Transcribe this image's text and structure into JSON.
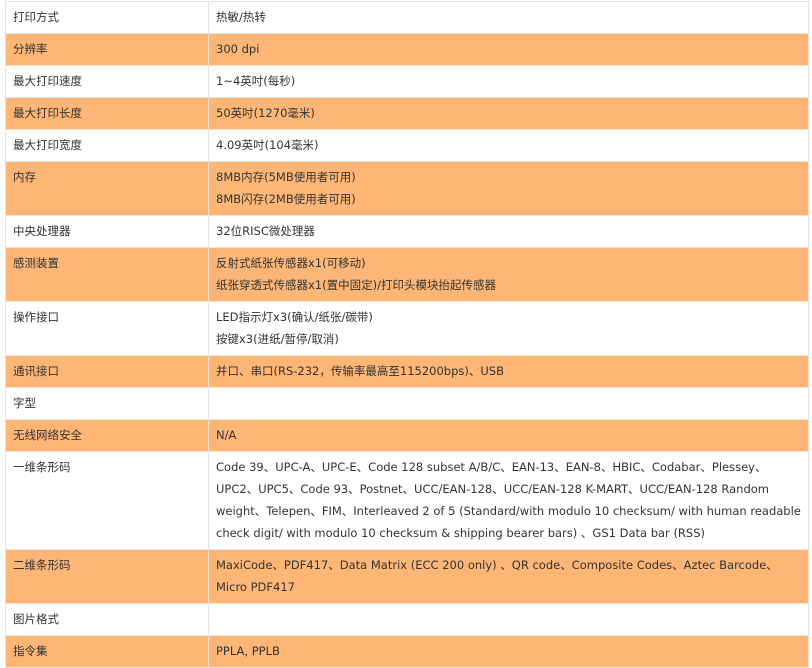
{
  "colors": {
    "alt_row": "#fdb676",
    "row": "#ffffff"
  },
  "rows": [
    {
      "label": "打印方式",
      "values": [
        "热敏/热转"
      ]
    },
    {
      "label": "分辨率",
      "values": [
        "300 dpi"
      ]
    },
    {
      "label": "最大打印速度",
      "values": [
        "1~4英吋(每秒)"
      ]
    },
    {
      "label": "最大打印长度",
      "values": [
        "50英吋(1270毫米)"
      ]
    },
    {
      "label": "最大打印宽度",
      "values": [
        "4.09英吋(104毫米)"
      ]
    },
    {
      "label": "内存",
      "values": [
        "8MB内存(5MB使用者可用)",
        "8MB闪存(2MB使用者可用)"
      ]
    },
    {
      "label": "中央处理器",
      "values": [
        "32位RISC微处理器"
      ]
    },
    {
      "label": "感测装置",
      "values": [
        "反射式纸张传感器x1(可移动)",
        "纸张穿透式传感器x1(置中固定)/打印头模块抬起传感器"
      ]
    },
    {
      "label": "操作接口",
      "values": [
        "LED指示灯x3(确认/纸张/碳带)",
        "按键x3(进纸/暂停/取消)"
      ]
    },
    {
      "label": "通讯接口",
      "values": [
        "并口、串口(RS-232，传输率最高至115200bps)、USB"
      ]
    },
    {
      "label": "字型",
      "values": [
        ""
      ]
    },
    {
      "label": "无线网络安全",
      "values": [
        "N/A"
      ]
    },
    {
      "label": "一维条形码",
      "values": [
        "Code 39、UPC-A、UPC-E、Code 128 subset A/B/C、EAN-13、EAN-8、HBIC、Codabar、Plessey、UPC2、UPC5、Code 93、Postnet、UCC/EAN-128、UCC/EAN-128 K-MART、UCC/EAN-128 Random weight、Telepen、FIM、Interleaved 2 of 5 (Standard/with modulo 10 checksum/ with human readable check digit/ with modulo 10 checksum & shipping bearer bars) 、GS1 Data bar (RSS)"
      ]
    },
    {
      "label": "二维条形码",
      "values": [
        "MaxiCode、PDF417、Data Matrix (ECC 200 only) 、QR code、Composite Codes、Aztec Barcode、Micro PDF417"
      ]
    },
    {
      "label": "图片格式",
      "values": [
        ""
      ]
    },
    {
      "label": "指令集",
      "values": [
        "PPLA, PPLB"
      ]
    }
  ]
}
